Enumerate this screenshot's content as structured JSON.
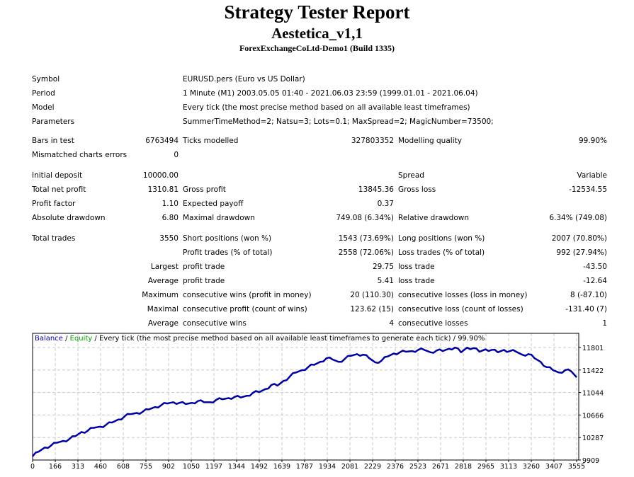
{
  "header": {
    "title": "Strategy Tester Report",
    "expert": "Aestetica_v1,1",
    "server": "ForexExchangeCoLtd-Demo1 (Build 1335)"
  },
  "info": {
    "symbol_label": "Symbol",
    "symbol_value": "EURUSD.pers (Euro vs US Dollar)",
    "period_label": "Period",
    "period_value": "1 Minute (M1) 2003.05.05 01:40 - 2021.06.03 23:59 (1999.01.01 - 2021.06.04)",
    "model_label": "Model",
    "model_value": "Every tick (the most precise method based on all available least timeframes)",
    "parameters_label": "Parameters",
    "parameters_value": "SummerTimeMethod=2; Natsu=3; Lots=0.1; MaxSpread=2; MagicNumber=73500;"
  },
  "stats": {
    "bars_label": "Bars in test",
    "bars_value": "6763494",
    "ticks_label": "Ticks modelled",
    "ticks_value": "327803352",
    "quality_label": "Modelling quality",
    "quality_value": "99.90%",
    "mismatch_label": "Mismatched charts errors",
    "mismatch_value": "0",
    "deposit_label": "Initial deposit",
    "deposit_value": "10000.00",
    "spread_label": "Spread",
    "spread_value": "Variable",
    "netprofit_label": "Total net profit",
    "netprofit_value": "1310.81",
    "grossprofit_label": "Gross profit",
    "grossprofit_value": "13845.36",
    "grossloss_label": "Gross loss",
    "grossloss_value": "-12534.55",
    "pf_label": "Profit factor",
    "pf_value": "1.10",
    "ep_label": "Expected payoff",
    "ep_value": "0.37",
    "absdd_label": "Absolute drawdown",
    "absdd_value": "6.80",
    "maxdd_label": "Maximal drawdown",
    "maxdd_value": "749.08 (6.34%)",
    "reldd_label": "Relative drawdown",
    "reldd_value": "6.34% (749.08)",
    "trades_label": "Total trades",
    "trades_value": "3550",
    "short_label": "Short positions (won %)",
    "short_value": "1543 (73.69%)",
    "long_label": "Long positions (won %)",
    "long_value": "2007 (70.80%)",
    "profittrades_label": "Profit trades (% of total)",
    "profittrades_value": "2558 (72.06%)",
    "losstrades_label": "Loss trades (% of total)",
    "losstrades_value": "992 (27.94%)",
    "largest_label": "Largest",
    "largest_profit_label": "profit trade",
    "largest_profit_value": "29.75",
    "largest_loss_label": "loss trade",
    "largest_loss_value": "-43.50",
    "average_label": "Average",
    "average_profit_label": "profit trade",
    "average_profit_value": "5.41",
    "average_loss_label": "loss trade",
    "average_loss_value": "-12.64",
    "maximum_label": "Maximum",
    "max_wins_label": "consecutive wins (profit in money)",
    "max_wins_value": "20 (110.30)",
    "max_losses_label": "consecutive losses (loss in money)",
    "max_losses_value": "8 (-87.10)",
    "maximal_label": "Maximal",
    "maximal_profit_label": "consecutive profit (count of wins)",
    "maximal_profit_value": "123.62 (15)",
    "maximal_loss_label": "consecutive loss (count of losses)",
    "maximal_loss_value": "-131.40 (7)",
    "avgcons_label": "Average",
    "avg_wins_label": "consecutive wins",
    "avg_wins_value": "4",
    "avg_losses_label": "consecutive losses",
    "avg_losses_value": "1"
  },
  "chart_data": {
    "type": "line",
    "legend": {
      "balance": "Balance",
      "sep1": " / ",
      "equity": "Equity",
      "rest": " / Every tick (the most precise method based on all available least timeframes to generate each tick) / 99.90%"
    },
    "colors": {
      "balance": "#0000a0",
      "equity": "#00a000",
      "grid": "#c8c8c8",
      "axis": "#000000"
    },
    "xlim": [
      0,
      3555
    ],
    "ylim": [
      9909,
      11972
    ],
    "x_ticks": [
      "0",
      "166",
      "313",
      "460",
      "608",
      "755",
      "902",
      "1050",
      "1197",
      "1344",
      "1492",
      "1639",
      "1787",
      "1934",
      "2081",
      "2229",
      "2376",
      "2523",
      "2671",
      "2818",
      "2965",
      "3113",
      "3260",
      "3407",
      "3555"
    ],
    "y_ticks": [
      "11801",
      "11422",
      "11044",
      "10666",
      "10287",
      "9909"
    ],
    "series": [
      {
        "name": "Balance",
        "x": [
          0,
          40,
          80,
          120,
          160,
          200,
          240,
          280,
          320,
          360,
          400,
          440,
          480,
          520,
          560,
          600,
          640,
          680,
          720,
          760,
          800,
          840,
          880,
          920,
          960,
          1000,
          1040,
          1080,
          1120,
          1160,
          1200,
          1240,
          1280,
          1320,
          1360,
          1400,
          1440,
          1480,
          1520,
          1560,
          1600,
          1640,
          1680,
          1720,
          1760,
          1800,
          1840,
          1880,
          1920,
          1960,
          2000,
          2040,
          2080,
          2120,
          2160,
          2200,
          2240,
          2280,
          2320,
          2360,
          2400,
          2440,
          2480,
          2520,
          2560,
          2600,
          2640,
          2680,
          2720,
          2760,
          2800,
          2840,
          2880,
          2920,
          2960,
          3000,
          3040,
          3080,
          3120,
          3160,
          3200,
          3240,
          3280,
          3320,
          3360,
          3400,
          3440,
          3480,
          3520,
          3555
        ],
        "values": [
          9970,
          10050,
          10120,
          10150,
          10200,
          10230,
          10260,
          10310,
          10380,
          10400,
          10450,
          10470,
          10500,
          10540,
          10590,
          10640,
          10680,
          10700,
          10720,
          10760,
          10800,
          10830,
          10860,
          10880,
          10870,
          10850,
          10870,
          10900,
          10880,
          10880,
          10920,
          10930,
          10950,
          10970,
          10960,
          10990,
          11040,
          11050,
          11100,
          11170,
          11160,
          11240,
          11310,
          11380,
          11420,
          11470,
          11510,
          11560,
          11620,
          11600,
          11560,
          11610,
          11660,
          11690,
          11680,
          11620,
          11550,
          11580,
          11650,
          11700,
          11720,
          11730,
          11740,
          11760,
          11760,
          11720,
          11750,
          11740,
          11780,
          11800,
          11720,
          11800,
          11790,
          11730,
          11770,
          11760,
          11720,
          11760,
          11740,
          11730,
          11680,
          11690,
          11620,
          11560,
          11470,
          11420,
          11380,
          11420,
          11400,
          11300
        ]
      }
    ]
  }
}
